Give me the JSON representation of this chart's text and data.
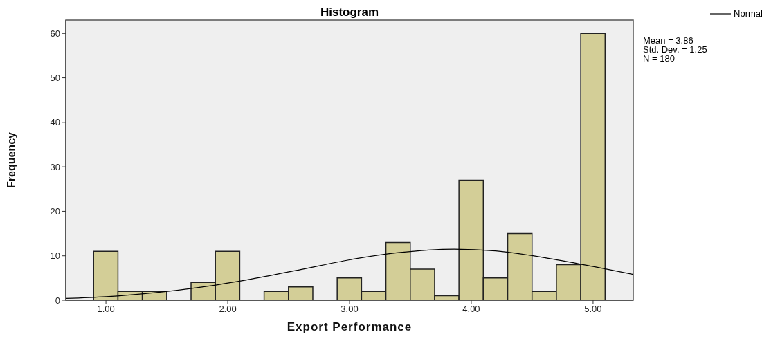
{
  "chart_data": {
    "type": "histogram",
    "title": "Histogram",
    "xlabel": "Export Performance",
    "ylabel": "Frequency",
    "bins": [
      0.9,
      1.1,
      1.3,
      1.5,
      1.7,
      1.9,
      2.1,
      2.3,
      2.5,
      2.7,
      2.9,
      3.1,
      3.3,
      3.5,
      3.7,
      3.9,
      4.1,
      4.3,
      4.5,
      4.7,
      4.9,
      5.1
    ],
    "values": [
      11,
      2,
      2,
      0,
      4,
      11,
      0,
      2,
      3,
      0,
      5,
      2,
      13,
      7,
      1,
      27,
      5,
      15,
      2,
      8,
      60
    ],
    "color": "#d3ce97",
    "series": [
      {
        "type": "line",
        "name": "Normal",
        "color": "#000000",
        "x": [
          0.67,
          1.0,
          1.4,
          1.8,
          2.2,
          2.6,
          3.0,
          3.4,
          3.86,
          4.2,
          4.6,
          5.0,
          5.33
        ],
        "values": [
          0.4,
          0.8,
          1.7,
          3.0,
          4.8,
          6.9,
          9.1,
          10.7,
          11.5,
          11.1,
          9.6,
          7.6,
          5.8
        ]
      }
    ],
    "xlim": [
      0.67,
      5.33
    ],
    "xticks": [
      {
        "value": 1,
        "label": "1.00"
      },
      {
        "value": 2,
        "label": "2.00"
      },
      {
        "value": 3,
        "label": "3.00"
      },
      {
        "value": 4,
        "label": "4.00"
      },
      {
        "value": 5,
        "label": "5.00"
      }
    ],
    "ylim": [
      0,
      63
    ],
    "yticks": [
      0,
      10,
      20,
      30,
      40,
      50,
      60
    ],
    "legend": "top right",
    "annotations": [
      "Mean = 3.86",
      "Std. Dev. = 1.25",
      "N = 180"
    ]
  }
}
